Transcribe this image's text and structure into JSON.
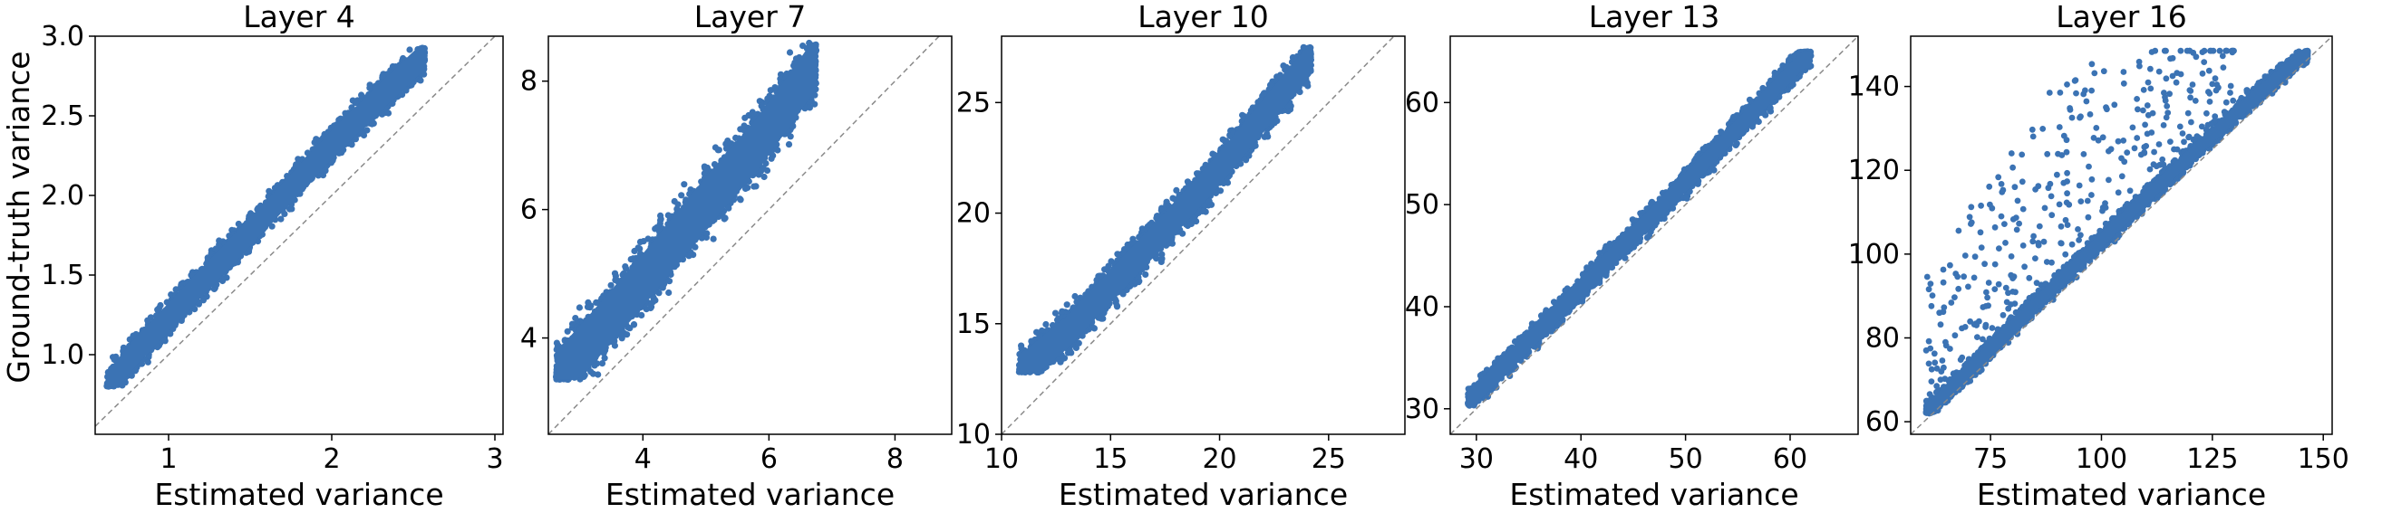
{
  "figure": {
    "shared_ylabel": "Ground-truth variance"
  },
  "colors": {
    "points": "#3b73b4",
    "diagonal": "#8a8a8a",
    "axes": "#000000"
  },
  "chart_data": [
    {
      "type": "scatter",
      "title": "Layer 4",
      "xlabel": "Estimated variance",
      "ylabel": "Ground-truth variance",
      "xlim": [
        0.55,
        3.05
      ],
      "ylim": [
        0.5,
        3.0
      ],
      "xticks": [
        1,
        2,
        3
      ],
      "xtick_labels": [
        "1",
        "2",
        "3"
      ],
      "yticks": [
        1.0,
        1.5,
        2.0,
        2.5,
        3.0
      ],
      "ytick_labels": [
        "1.0",
        "1.5",
        "2.0",
        "2.5",
        "3.0"
      ],
      "reference_line": "y = x",
      "grid": false,
      "data_range": {
        "x": [
          0.62,
          2.57
        ],
        "y": [
          0.8,
          2.93
        ]
      },
      "trend": [
        [
          0.62,
          0.8
        ],
        [
          0.8,
          1.02
        ],
        [
          1.2,
          1.45
        ],
        [
          1.6,
          1.88
        ],
        [
          2.0,
          2.32
        ],
        [
          2.3,
          2.62
        ],
        [
          2.57,
          2.88
        ]
      ],
      "spread": 0.12
    },
    {
      "type": "scatter",
      "title": "Layer 7",
      "xlabel": "Estimated variance",
      "ylabel": "",
      "xlim": [
        2.5,
        8.9
      ],
      "ylim": [
        2.5,
        8.7
      ],
      "xticks": [
        4,
        6,
        8
      ],
      "xtick_labels": [
        "4",
        "6",
        "8"
      ],
      "yticks": [
        4,
        6,
        8
      ],
      "ytick_labels": [
        "4",
        "6",
        "8"
      ],
      "reference_line": "y = x",
      "grid": false,
      "data_range": {
        "x": [
          2.62,
          6.75
        ],
        "y": [
          3.35,
          8.62
        ]
      },
      "trend": [
        [
          2.65,
          3.4
        ],
        [
          3.2,
          4.0
        ],
        [
          4.0,
          4.9
        ],
        [
          5.0,
          6.1
        ],
        [
          5.8,
          7.0
        ],
        [
          6.4,
          7.8
        ],
        [
          6.75,
          8.3
        ]
      ],
      "spread": 0.55
    },
    {
      "type": "scatter",
      "title": "Layer 10",
      "xlabel": "Estimated variance",
      "ylabel": "",
      "xlim": [
        10.0,
        28.5
      ],
      "ylim": [
        10.0,
        28.0
      ],
      "xticks": [
        10,
        15,
        20,
        25
      ],
      "xtick_labels": [
        "10",
        "15",
        "20",
        "25"
      ],
      "yticks": [
        10,
        15,
        20,
        25
      ],
      "ytick_labels": [
        "10",
        "15",
        "20",
        "25"
      ],
      "reference_line": "y = x",
      "grid": false,
      "data_range": {
        "x": [
          10.8,
          24.2
        ],
        "y": [
          12.8,
          27.5
        ]
      },
      "trend": [
        [
          10.9,
          12.9
        ],
        [
          13.0,
          14.6
        ],
        [
          15.0,
          16.7
        ],
        [
          17.5,
          19.3
        ],
        [
          20.0,
          22.0
        ],
        [
          22.5,
          25.0
        ],
        [
          24.2,
          27.0
        ]
      ],
      "spread": 1.0
    },
    {
      "type": "scatter",
      "title": "Layer 13",
      "xlabel": "Estimated variance",
      "ylabel": "",
      "xlim": [
        27.5,
        66.5
      ],
      "ylim": [
        27.5,
        66.5
      ],
      "xticks": [
        30,
        40,
        50,
        60
      ],
      "xtick_labels": [
        "30",
        "40",
        "50",
        "60"
      ],
      "yticks": [
        30,
        40,
        50,
        60
      ],
      "ytick_labels": [
        "30",
        "40",
        "50",
        "60"
      ],
      "reference_line": "y = x",
      "grid": false,
      "data_range": {
        "x": [
          29.2,
          62.0
        ],
        "y": [
          30.3,
          65.0
        ]
      },
      "trend": [
        [
          29.3,
          30.8
        ],
        [
          35.0,
          36.6
        ],
        [
          40.0,
          41.8
        ],
        [
          45.0,
          47.0
        ],
        [
          50.0,
          52.2
        ],
        [
          55.0,
          57.5
        ],
        [
          61.5,
          64.5
        ]
      ],
      "spread": 1.3
    },
    {
      "type": "scatter",
      "title": "Layer 16",
      "xlabel": "Estimated variance",
      "ylabel": "",
      "xlim": [
        57.0,
        152.0
      ],
      "ylim": [
        57.0,
        152.0
      ],
      "xticks": [
        75,
        100,
        125,
        150
      ],
      "xtick_labels": [
        "75",
        "100",
        "125",
        "150"
      ],
      "yticks": [
        60,
        80,
        100,
        120,
        140
      ],
      "ytick_labels": [
        "60",
        "80",
        "100",
        "120",
        "140"
      ],
      "reference_line": "y = x",
      "grid": false,
      "data_range": {
        "x": [
          60.5,
          146.5
        ],
        "y": [
          62.0,
          148.5
        ]
      },
      "trend": [
        [
          60.8,
          62.5
        ],
        [
          75.0,
          77.5
        ],
        [
          90.0,
          93.0
        ],
        [
          105.0,
          108.5
        ],
        [
          120.0,
          123.5
        ],
        [
          135.0,
          138.0
        ],
        [
          146.0,
          147.5
        ]
      ],
      "spread": 2.5,
      "outlier_band": {
        "x": [
          60,
          130
        ],
        "y_above_trend": [
          5,
          50
        ]
      }
    }
  ]
}
